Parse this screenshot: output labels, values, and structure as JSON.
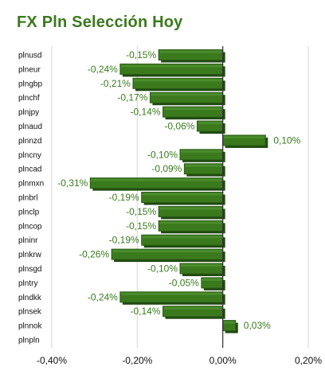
{
  "chart_data": {
    "type": "bar",
    "orientation": "horizontal",
    "title": "FX Pln Selección Hoy",
    "xlabel": "",
    "ylabel": "",
    "xlim": [
      -0.4,
      0.2
    ],
    "x_ticks": [
      -0.4,
      -0.2,
      0.0,
      0.2
    ],
    "x_tick_labels": [
      "-0,40%",
      "-0,20%",
      "0,00%",
      "0,20%"
    ],
    "grid": true,
    "legend": "none",
    "bar_color": "#3a7a1d",
    "label_color": "#3a7a1d",
    "categories": [
      "plnusd",
      "plneur",
      "plngbp",
      "plnchf",
      "plnjpy",
      "plnaud",
      "plnnzd",
      "plncny",
      "plncad",
      "plnmxn",
      "plnbrl",
      "plnclp",
      "plncop",
      "plninr",
      "plnkrw",
      "plnsgd",
      "plntry",
      "plndkk",
      "plnsek",
      "plnnok",
      "plnpln"
    ],
    "values": [
      -0.15,
      -0.24,
      -0.21,
      -0.17,
      -0.14,
      -0.06,
      0.1,
      -0.1,
      -0.09,
      -0.31,
      -0.19,
      -0.15,
      -0.15,
      -0.19,
      -0.26,
      -0.1,
      -0.05,
      -0.24,
      -0.14,
      0.03,
      null
    ],
    "value_labels": [
      "-0,15%",
      "-0,24%",
      "-0,21%",
      "-0,17%",
      "-0,14%",
      "-0,06%",
      "0,10%",
      "-0,10%",
      "-0,09%",
      "-0,31%",
      "-0,19%",
      "-0,15%",
      "-0,15%",
      "-0,19%",
      "-0,26%",
      "-0,10%",
      "-0,05%",
      "-0,24%",
      "-0,14%",
      "0,03%",
      ""
    ]
  }
}
